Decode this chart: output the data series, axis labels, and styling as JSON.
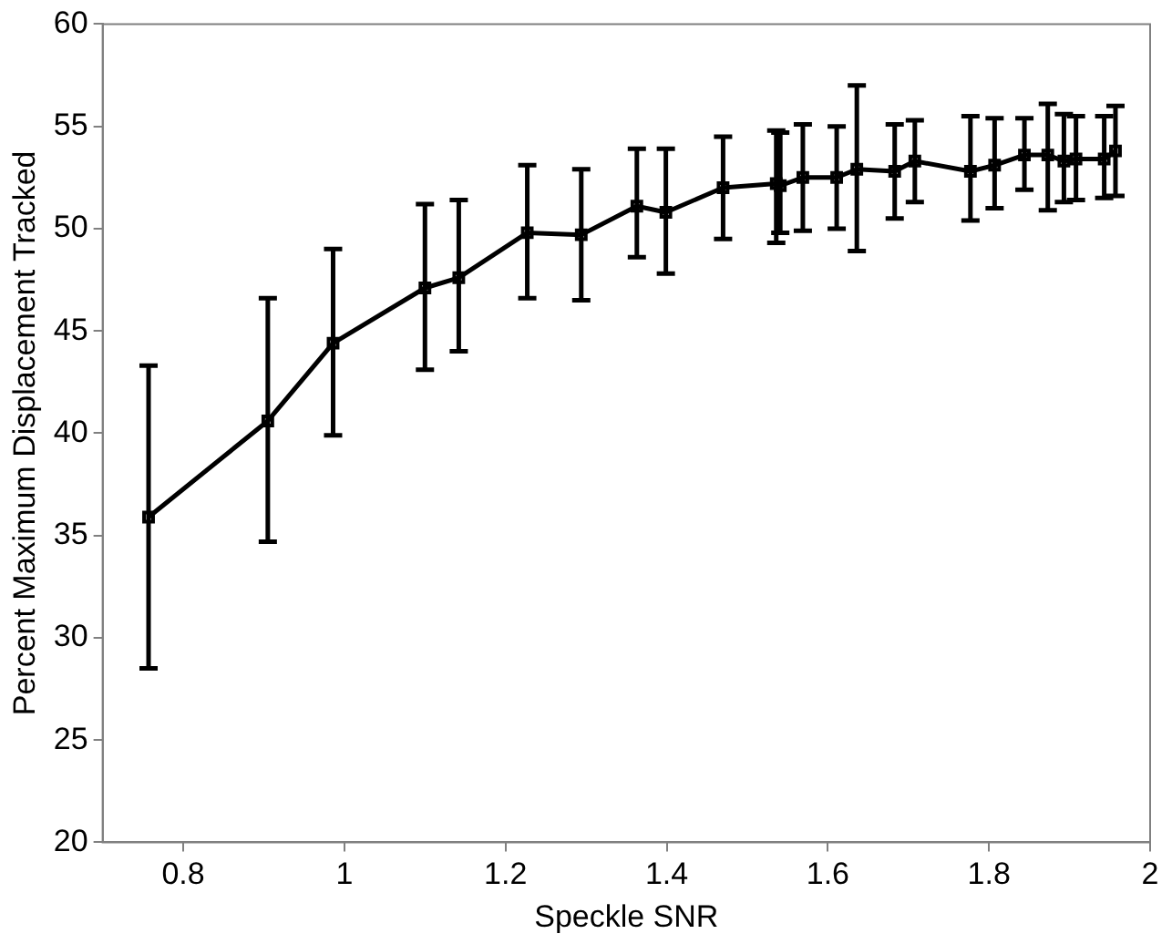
{
  "chart_data": {
    "type": "line",
    "xlabel": "Speckle SNR",
    "ylabel": "Percent Maximum Displacement Tracked",
    "x": [
      0.757,
      0.905,
      0.986,
      1.1,
      1.142,
      1.227,
      1.294,
      1.363,
      1.399,
      1.47,
      1.536,
      1.541,
      1.569,
      1.611,
      1.636,
      1.683,
      1.708,
      1.777,
      1.807,
      1.844,
      1.873,
      1.893,
      1.908,
      1.943,
      1.957
    ],
    "series": [
      {
        "color": "#000000",
        "values": [
          35.9,
          40.6,
          44.4,
          47.1,
          47.6,
          49.8,
          49.7,
          51.1,
          50.8,
          52.0,
          52.2,
          52.1,
          52.5,
          52.5,
          52.9,
          52.8,
          53.3,
          52.8,
          53.1,
          53.6,
          53.6,
          53.3,
          53.4,
          53.4,
          53.8
        ],
        "errors": [
          [
            28.5,
            43.3
          ],
          [
            34.7,
            46.6
          ],
          [
            39.9,
            49.0
          ],
          [
            43.1,
            51.2
          ],
          [
            44.0,
            51.4
          ],
          [
            46.6,
            53.1
          ],
          [
            46.5,
            52.9
          ],
          [
            48.6,
            53.9
          ],
          [
            47.8,
            53.9
          ],
          [
            49.5,
            54.5
          ],
          [
            49.3,
            54.8
          ],
          [
            49.8,
            54.7
          ],
          [
            49.9,
            55.1
          ],
          [
            50.0,
            55.0
          ],
          [
            48.9,
            57.0
          ],
          [
            50.5,
            55.1
          ],
          [
            51.3,
            55.3
          ],
          [
            50.4,
            55.5
          ],
          [
            51.0,
            55.4
          ],
          [
            51.9,
            55.4
          ],
          [
            50.9,
            56.1
          ],
          [
            51.3,
            55.6
          ],
          [
            51.4,
            55.5
          ],
          [
            51.5,
            55.5
          ],
          [
            51.6,
            56.0
          ]
        ]
      }
    ],
    "xlim": [
      0.7,
      2
    ],
    "xticks": [
      0.8,
      1,
      1.2,
      1.4,
      1.6,
      1.8,
      2
    ],
    "ylim": [
      20,
      60
    ],
    "yticks": [
      20,
      25,
      30,
      35,
      40,
      45,
      50,
      55,
      60
    ],
    "grid": false,
    "legend": false,
    "marker": "square",
    "line_style": "solid"
  }
}
